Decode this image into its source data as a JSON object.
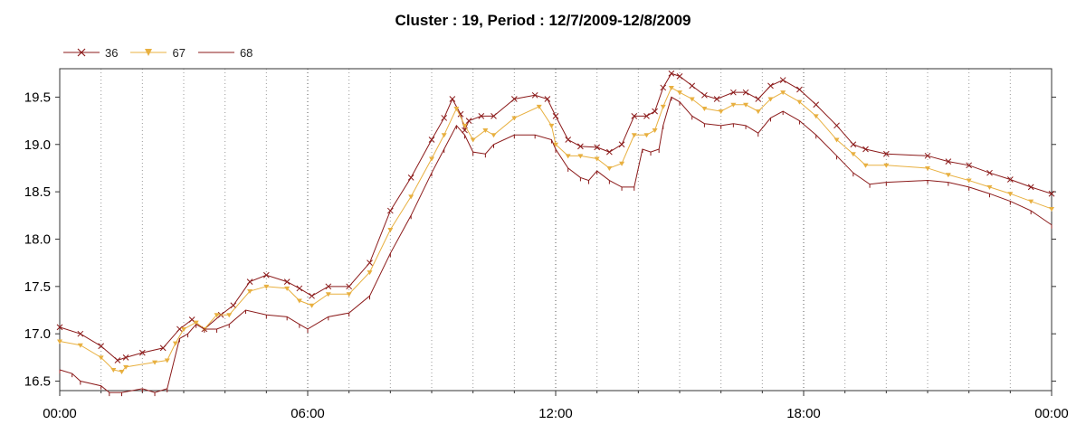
{
  "chart_data": {
    "type": "line",
    "title": "Cluster : 19, Period : 12/7/2009-12/8/2009",
    "xlabel": "",
    "ylabel": "",
    "x_ticks": [
      "00:00",
      "06:00",
      "12:00",
      "18:00",
      "00:00"
    ],
    "x_tick_hours": [
      0,
      6,
      12,
      18,
      24
    ],
    "x_range_hours": [
      0,
      24
    ],
    "y_ticks": [
      "16.5",
      "17.0",
      "17.5",
      "18.0",
      "18.5",
      "19.0",
      "19.5"
    ],
    "y_tick_values": [
      16.5,
      17.0,
      17.5,
      18.0,
      18.5,
      19.0,
      19.5
    ],
    "ylim": [
      16.4,
      19.8
    ],
    "grid": "vertical dotted at hourly intervals",
    "legend_position": "top-left",
    "series": [
      {
        "name": "36",
        "color": "#8b1a1a",
        "marker": "x",
        "x_hours": [
          0,
          0.5,
          1.0,
          1.4,
          1.6,
          2.0,
          2.5,
          2.9,
          3.2,
          3.5,
          3.9,
          4.2,
          4.6,
          5.0,
          5.5,
          5.8,
          6.1,
          6.5,
          7.0,
          7.5,
          8.0,
          8.5,
          9.0,
          9.3,
          9.5,
          9.7,
          9.8,
          9.9,
          10.2,
          10.5,
          11.0,
          11.5,
          11.8,
          12.0,
          12.3,
          12.6,
          13.0,
          13.3,
          13.6,
          13.9,
          14.2,
          14.4,
          14.6,
          14.8,
          15.0,
          15.3,
          15.6,
          15.9,
          16.3,
          16.6,
          16.9,
          17.2,
          17.5,
          17.9,
          18.3,
          18.8,
          19.2,
          19.5,
          20.0,
          21.0,
          21.5,
          22.0,
          22.5,
          23.0,
          23.5,
          24.0
        ],
        "values": [
          17.07,
          17.0,
          16.87,
          16.72,
          16.75,
          16.8,
          16.85,
          17.05,
          17.15,
          17.05,
          17.2,
          17.3,
          17.55,
          17.62,
          17.55,
          17.48,
          17.4,
          17.5,
          17.5,
          17.75,
          18.3,
          18.65,
          19.05,
          19.28,
          19.48,
          19.32,
          19.15,
          19.25,
          19.3,
          19.3,
          19.48,
          19.52,
          19.48,
          19.3,
          19.05,
          18.98,
          18.97,
          18.92,
          19.0,
          19.3,
          19.3,
          19.35,
          19.6,
          19.75,
          19.72,
          19.62,
          19.52,
          19.48,
          19.55,
          19.55,
          19.48,
          19.62,
          19.68,
          19.58,
          19.42,
          19.2,
          19.0,
          18.95,
          18.9,
          18.88,
          18.82,
          18.78,
          18.7,
          18.63,
          18.55,
          18.48
        ]
      },
      {
        "name": "67",
        "color": "#e8b040",
        "marker": "triangle-down",
        "x_hours": [
          0,
          0.5,
          1.0,
          1.3,
          1.5,
          1.6,
          2.3,
          2.6,
          2.8,
          3.0,
          3.3,
          3.5,
          3.8,
          4.1,
          4.6,
          5.0,
          5.5,
          5.8,
          6.1,
          6.5,
          7.0,
          7.5,
          8.0,
          8.5,
          9.0,
          9.3,
          9.6,
          9.8,
          10.0,
          10.3,
          10.5,
          11.0,
          11.6,
          11.9,
          12.0,
          12.3,
          12.6,
          13.0,
          13.3,
          13.6,
          13.9,
          14.2,
          14.4,
          14.6,
          14.8,
          15.0,
          15.3,
          15.6,
          16.0,
          16.3,
          16.6,
          16.9,
          17.2,
          17.5,
          17.9,
          18.3,
          18.8,
          19.2,
          19.5,
          20.0,
          21.0,
          21.5,
          22.0,
          22.5,
          23.0,
          23.5,
          24.0
        ],
        "values": [
          16.92,
          16.88,
          16.75,
          16.62,
          16.6,
          16.65,
          16.7,
          16.72,
          16.9,
          17.05,
          17.12,
          17.05,
          17.2,
          17.2,
          17.45,
          17.5,
          17.48,
          17.35,
          17.3,
          17.42,
          17.42,
          17.65,
          18.1,
          18.45,
          18.85,
          19.1,
          19.38,
          19.2,
          19.05,
          19.15,
          19.1,
          19.28,
          19.4,
          19.2,
          19.0,
          18.88,
          18.88,
          18.85,
          18.75,
          18.8,
          19.1,
          19.1,
          19.15,
          19.4,
          19.6,
          19.55,
          19.48,
          19.38,
          19.35,
          19.42,
          19.42,
          19.35,
          19.48,
          19.55,
          19.45,
          19.3,
          19.05,
          18.9,
          18.78,
          18.78,
          18.75,
          18.68,
          18.62,
          18.55,
          18.48,
          18.4,
          18.32
        ]
      },
      {
        "name": "68",
        "color": "#8b1a1a",
        "marker": "tick",
        "x_hours": [
          0,
          0.3,
          0.5,
          1.0,
          1.2,
          1.5,
          2.0,
          2.3,
          2.6,
          2.9,
          3.1,
          3.3,
          3.5,
          3.8,
          4.1,
          4.5,
          5.0,
          5.5,
          5.8,
          6.0,
          6.5,
          7.0,
          7.5,
          8.0,
          8.5,
          9.0,
          9.3,
          9.6,
          9.8,
          10.0,
          10.3,
          10.5,
          11.0,
          11.5,
          11.9,
          12.0,
          12.3,
          12.6,
          12.8,
          13.0,
          13.3,
          13.6,
          13.9,
          14.1,
          14.3,
          14.5,
          14.6,
          14.8,
          15.0,
          15.3,
          15.6,
          16.0,
          16.3,
          16.6,
          16.9,
          17.2,
          17.5,
          17.9,
          18.3,
          18.8,
          19.2,
          19.6,
          20.0,
          21.0,
          21.5,
          22.0,
          22.5,
          23.0,
          23.5,
          24.0
        ],
        "values": [
          16.62,
          16.58,
          16.5,
          16.45,
          16.38,
          16.38,
          16.42,
          16.38,
          16.42,
          16.95,
          17.0,
          17.1,
          17.05,
          17.05,
          17.1,
          17.25,
          17.2,
          17.18,
          17.1,
          17.05,
          17.18,
          17.22,
          17.4,
          17.85,
          18.25,
          18.7,
          18.95,
          19.2,
          19.1,
          18.92,
          18.9,
          19.0,
          19.1,
          19.1,
          19.05,
          18.95,
          18.75,
          18.65,
          18.62,
          18.72,
          18.62,
          18.55,
          18.55,
          18.95,
          18.92,
          18.95,
          19.2,
          19.5,
          19.45,
          19.3,
          19.22,
          19.2,
          19.22,
          19.2,
          19.12,
          19.28,
          19.35,
          19.25,
          19.1,
          18.88,
          18.7,
          18.58,
          18.6,
          18.62,
          18.6,
          18.55,
          18.48,
          18.4,
          18.3,
          18.15
        ]
      }
    ]
  }
}
